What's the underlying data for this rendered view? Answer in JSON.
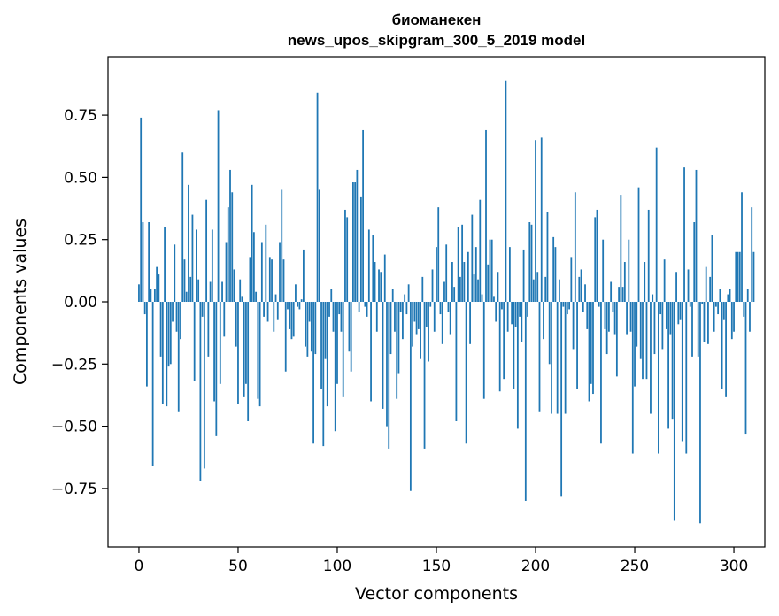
{
  "chart_data": {
    "type": "bar",
    "title": "биоманекен",
    "subtitle": "news_upos_skipgram_300_5_2019 model",
    "xlabel": "Vector components",
    "ylabel": "Components values",
    "xlim": [
      -15.6,
      315.6
    ],
    "ylim": [
      -0.985,
      0.985
    ],
    "xticks": [
      0,
      50,
      100,
      150,
      200,
      250,
      300
    ],
    "xtick_labels": [
      "0",
      "50",
      "100",
      "150",
      "200",
      "250",
      "300"
    ],
    "yticks": [
      -0.75,
      -0.5,
      -0.25,
      0.0,
      0.25,
      0.5,
      0.75
    ],
    "ytick_labels": [
      "−0.75",
      "−0.50",
      "−0.25",
      "0.00",
      "0.25",
      "0.50",
      "0.75"
    ],
    "bar_color": "#1f77b4",
    "grid": false,
    "values": [
      0.07,
      0.74,
      0.32,
      -0.05,
      -0.34,
      0.32,
      0.05,
      -0.66,
      0.05,
      0.14,
      0.11,
      -0.22,
      -0.41,
      0.3,
      -0.42,
      -0.26,
      -0.25,
      -0.08,
      0.23,
      -0.12,
      -0.44,
      -0.15,
      0.6,
      0.17,
      0.04,
      0.47,
      0.1,
      0.35,
      -0.32,
      0.29,
      0.09,
      -0.72,
      -0.06,
      -0.67,
      0.41,
      -0.22,
      0.08,
      0.29,
      -0.4,
      -0.54,
      0.77,
      -0.33,
      0.08,
      -0.14,
      0.24,
      0.38,
      0.53,
      0.44,
      0.13,
      -0.18,
      -0.41,
      0.09,
      0.02,
      -0.38,
      -0.33,
      -0.48,
      0.18,
      0.47,
      0.28,
      0.04,
      -0.39,
      -0.42,
      0.24,
      -0.06,
      0.31,
      -0.08,
      0.18,
      0.17,
      -0.12,
      0.03,
      -0.07,
      0.24,
      0.45,
      0.17,
      -0.28,
      -0.03,
      -0.11,
      -0.15,
      -0.14,
      0.07,
      -0.02,
      -0.03,
      0.01,
      0.21,
      -0.18,
      -0.22,
      -0.08,
      -0.2,
      -0.57,
      -0.21,
      0.84,
      0.45,
      -0.35,
      -0.58,
      -0.23,
      -0.42,
      -0.06,
      0.05,
      -0.12,
      -0.52,
      -0.33,
      -0.05,
      -0.12,
      -0.38,
      0.37,
      0.34,
      -0.2,
      -0.28,
      0.48,
      0.48,
      0.53,
      -0.04,
      0.42,
      0.69,
      -0.02,
      -0.06,
      0.29,
      -0.4,
      0.27,
      0.16,
      -0.12,
      0.13,
      0.12,
      -0.43,
      0.19,
      -0.5,
      -0.59,
      -0.21,
      0.05,
      -0.12,
      -0.39,
      -0.29,
      -0.04,
      -0.15,
      0.03,
      -0.05,
      0.07,
      -0.76,
      -0.18,
      -0.08,
      -0.13,
      -0.11,
      -0.23,
      0.1,
      -0.59,
      -0.1,
      -0.24,
      -0.02,
      0.13,
      -0.12,
      0.22,
      0.38,
      -0.05,
      -0.17,
      0.08,
      0.23,
      -0.04,
      -0.13,
      0.16,
      0.06,
      -0.48,
      0.3,
      0.1,
      0.31,
      0.16,
      -0.57,
      0.2,
      -0.17,
      0.35,
      0.11,
      0.22,
      0.09,
      0.41,
      0.03,
      -0.39,
      0.69,
      0.15,
      0.25,
      0.25,
      0.02,
      -0.08,
      0.12,
      -0.36,
      -0.03,
      -0.31,
      0.89,
      -0.12,
      0.22,
      -0.09,
      -0.35,
      -0.1,
      -0.51,
      -0.06,
      -0.16,
      0.21,
      -0.8,
      -0.06,
      0.32,
      0.31,
      0.09,
      0.65,
      0.12,
      -0.44,
      0.66,
      -0.15,
      0.1,
      0.36,
      -0.25,
      -0.45,
      0.26,
      0.22,
      -0.45,
      0.09,
      -0.78,
      -0.02,
      -0.45,
      -0.05,
      -0.03,
      0.18,
      -0.19,
      0.44,
      -0.35,
      0.1,
      0.13,
      -0.04,
      0.07,
      -0.11,
      -0.4,
      -0.33,
      -0.37,
      0.34,
      0.37,
      -0.02,
      -0.57,
      0.25,
      -0.11,
      -0.21,
      -0.12,
      0.08,
      -0.04,
      -0.13,
      -0.3,
      0.06,
      0.43,
      0.06,
      0.16,
      -0.13,
      0.25,
      -0.12,
      -0.61,
      -0.34,
      -0.18,
      0.46,
      -0.23,
      -0.31,
      0.16,
      -0.31,
      0.37,
      -0.45,
      0.03,
      -0.21,
      0.62,
      -0.61,
      -0.05,
      -0.19,
      0.17,
      -0.11,
      -0.51,
      -0.13,
      -0.47,
      -0.88,
      0.12,
      -0.09,
      -0.07,
      -0.56,
      0.54,
      -0.61,
      0.13,
      -0.02,
      -0.22,
      0.32,
      0.53,
      -0.22,
      -0.89,
      -0.01,
      -0.16,
      0.14,
      -0.17,
      0.1,
      0.27,
      -0.12,
      -0.02,
      -0.05,
      0.05,
      -0.35,
      -0.07,
      -0.38,
      0.03,
      0.05,
      -0.15,
      -0.12,
      0.2,
      0.2,
      0.2,
      0.44,
      -0.06,
      -0.53,
      0.05,
      -0.12,
      0.38,
      0.2
    ]
  }
}
